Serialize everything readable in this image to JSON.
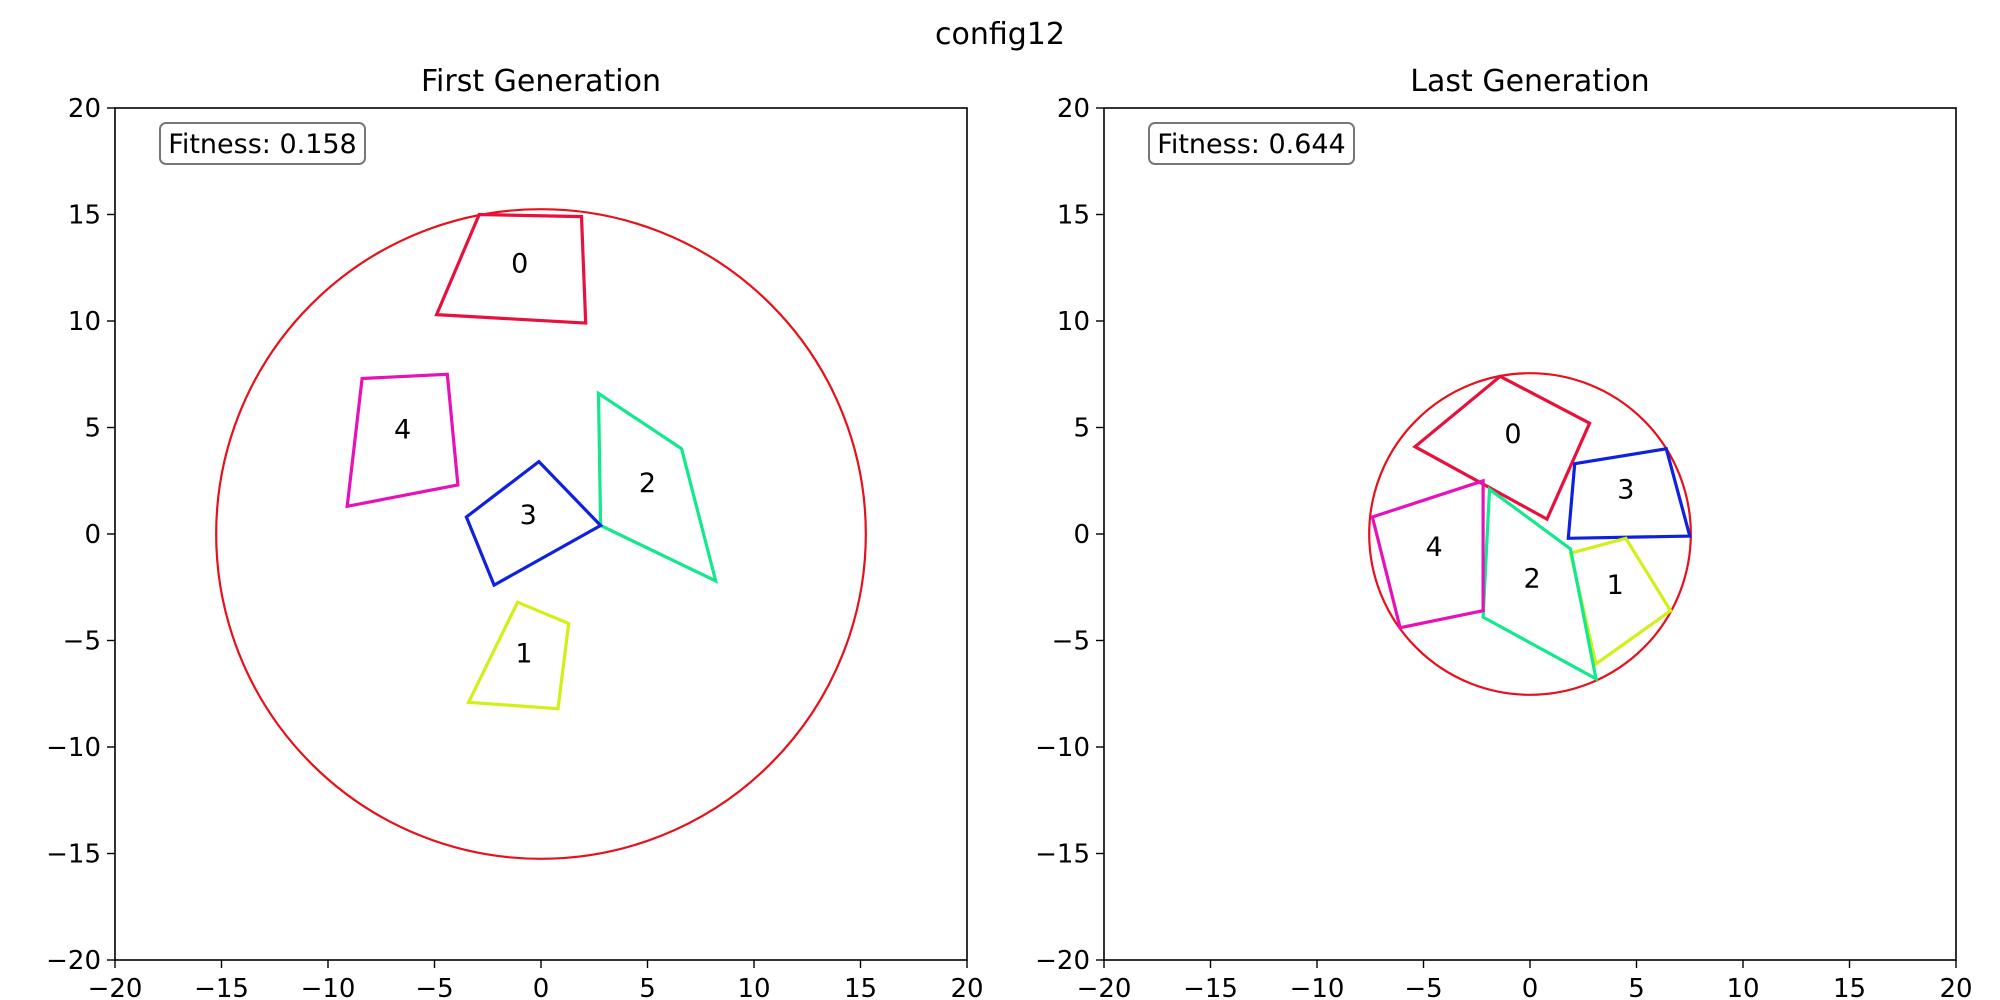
{
  "figure": {
    "title": "config12"
  },
  "chart_data": [
    {
      "type": "scatter",
      "title": "First Generation",
      "xlabel": "",
      "ylabel": "",
      "xlim": [
        -20,
        20
      ],
      "ylim": [
        -20,
        20
      ],
      "xticks": [
        -20,
        -15,
        -10,
        -5,
        0,
        5,
        10,
        15,
        20
      ],
      "yticks": [
        -20,
        -15,
        -10,
        -5,
        0,
        5,
        10,
        15,
        20
      ],
      "grid": false,
      "fitness_label": "Fitness: 0.158",
      "circle": {
        "center": [
          0,
          0
        ],
        "radius": 15.25,
        "color": "#e8101a"
      },
      "polygons": [
        {
          "label": "0",
          "color": "#e8103c",
          "label_pos": [
            -1,
            12.7
          ],
          "points": [
            [
              -2.9,
              15
            ],
            [
              1.9,
              14.9
            ],
            [
              2.1,
              9.9
            ],
            [
              -4.9,
              10.3
            ]
          ]
        },
        {
          "label": "1",
          "color": "#d2f016",
          "label_pos": [
            -0.8,
            -5.6
          ],
          "points": [
            [
              -1.1,
              -3.2
            ],
            [
              1.3,
              -4.2
            ],
            [
              0.8,
              -8.2
            ],
            [
              -3.4,
              -7.9
            ]
          ]
        },
        {
          "label": "2",
          "color": "#12e88c",
          "label_pos": [
            5,
            2.4
          ],
          "points": [
            [
              2.7,
              6.6
            ],
            [
              6.6,
              4
            ],
            [
              8.2,
              -2.2
            ],
            [
              2.8,
              0.4
            ],
            [
              2.7,
              6.6
            ]
          ]
        },
        {
          "label": "3",
          "color": "#1020e0",
          "label_pos": [
            -0.6,
            0.9
          ],
          "points": [
            [
              -0.1,
              3.4
            ],
            [
              2.8,
              0.4
            ],
            [
              -2.2,
              -2.4
            ],
            [
              -3.5,
              0.8
            ]
          ]
        },
        {
          "label": "4",
          "color": "#e810b8",
          "label_pos": [
            -6.5,
            4.9
          ],
          "points": [
            [
              -8.4,
              7.3
            ],
            [
              -4.4,
              7.5
            ],
            [
              -3.9,
              2.3
            ],
            [
              -9.1,
              1.3
            ]
          ]
        }
      ]
    },
    {
      "type": "scatter",
      "title": "Last Generation",
      "xlabel": "",
      "ylabel": "",
      "xlim": [
        -20,
        20
      ],
      "ylim": [
        -20,
        20
      ],
      "xticks": [
        -20,
        -15,
        -10,
        -5,
        0,
        5,
        10,
        15,
        20
      ],
      "yticks": [
        -20,
        -15,
        -10,
        -5,
        0,
        5,
        10,
        15,
        20
      ],
      "grid": false,
      "fitness_label": "Fitness: 0.644",
      "circle": {
        "center": [
          0,
          0
        ],
        "radius": 7.55,
        "color": "#e8101a"
      },
      "polygons": [
        {
          "label": "0",
          "color": "#e8103c",
          "label_pos": [
            -0.8,
            4.7
          ],
          "points": [
            [
              -1.4,
              7.4
            ],
            [
              2.8,
              5.2
            ],
            [
              0.8,
              0.7
            ],
            [
              -5.4,
              4.1
            ]
          ]
        },
        {
          "label": "3",
          "color": "#1020e0",
          "label_pos": [
            4.5,
            2.1
          ],
          "points": [
            [
              2.1,
              3.3
            ],
            [
              6.4,
              4
            ],
            [
              7.5,
              -0.1
            ],
            [
              1.8,
              -0.2
            ]
          ]
        },
        {
          "label": "1",
          "color": "#d2f016",
          "label_pos": [
            4,
            -2.4
          ],
          "points": [
            [
              1.9,
              -0.9
            ],
            [
              4.5,
              -0.2
            ],
            [
              6.6,
              -3.6
            ],
            [
              3.1,
              -6.1
            ]
          ]
        },
        {
          "label": "2",
          "color": "#12e88c",
          "label_pos": [
            0.1,
            -2.1
          ],
          "points": [
            [
              -1.9,
              2.1
            ],
            [
              1.9,
              -0.7
            ],
            [
              3.1,
              -6.8
            ],
            [
              -2.2,
              -3.9
            ]
          ]
        },
        {
          "label": "4",
          "color": "#e810b8",
          "label_pos": [
            -4.5,
            -0.6
          ],
          "points": [
            [
              -7.4,
              0.8
            ],
            [
              -2.2,
              2.5
            ],
            [
              -2.2,
              -3.6
            ],
            [
              -6.1,
              -4.4
            ]
          ]
        }
      ]
    }
  ]
}
